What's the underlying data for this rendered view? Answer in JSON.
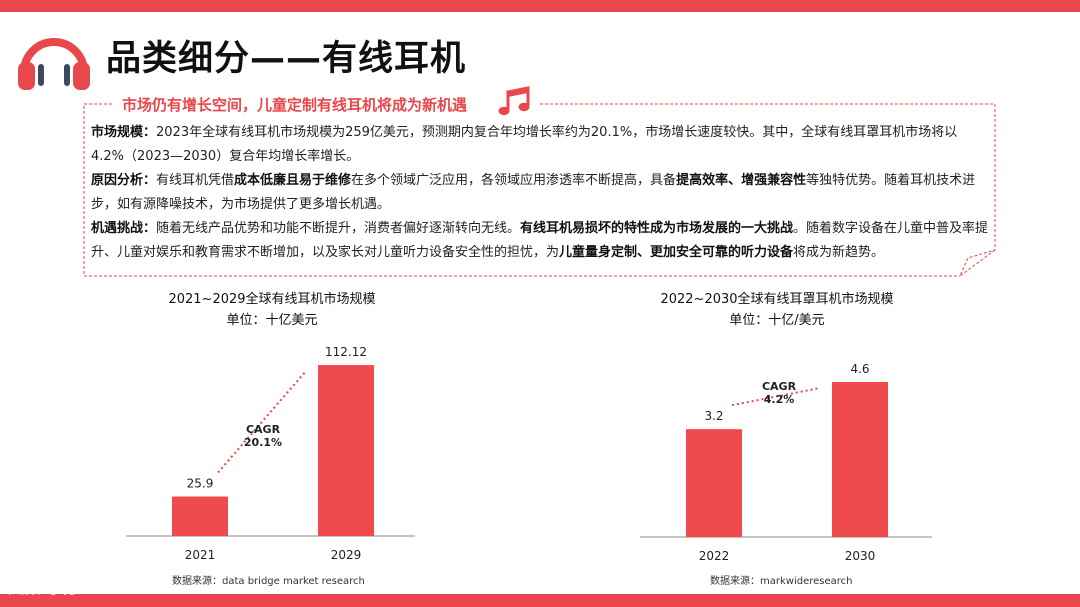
{
  "page": {
    "title": "品类细分——有线耳机",
    "banner": "市场仍有增长空间，儿童定制有线耳机将成为新机遇",
    "watermark": "大数跨境",
    "colors": {
      "accent": "#e8474c",
      "logo_dark": "#3b4a5e"
    },
    "icons": {
      "logo": "headphones-icon",
      "note": "music-note-icon"
    }
  },
  "paragraphs": [
    {
      "name": "market-size-paragraph",
      "segments": [
        {
          "text": "市场规模：",
          "bold": true
        },
        {
          "text": "2023年全球有线耳机市场规模为259亿美元，预测期内复合年均增长率约为20.1%，市场增长速度较快。其中，全球有线耳罩耳机市场将以4.2%（2023—2030）复合年均增长率增长。",
          "bold": false
        }
      ]
    },
    {
      "name": "cause-analysis-paragraph",
      "segments": [
        {
          "text": "原因分析：",
          "bold": true
        },
        {
          "text": "有线耳机凭借",
          "bold": false
        },
        {
          "text": "成本低廉且易于维修",
          "bold": true
        },
        {
          "text": "在多个领域广泛应用，各领域应用渗透率不断提高，具备",
          "bold": false
        },
        {
          "text": "提高效率、增强兼容性",
          "bold": true
        },
        {
          "text": "等独特优势。随着耳机技术进步，如有源降噪技术，为市场提供了更多增长机遇。",
          "bold": false
        }
      ]
    },
    {
      "name": "opportunity-challenge-paragraph",
      "segments": [
        {
          "text": "机遇挑战：",
          "bold": true
        },
        {
          "text": "随着无线产品优势和功能不断提升，消费者偏好逐渐转向无线。",
          "bold": false
        },
        {
          "text": "有线耳机易损坏的特性成为市场发展的一大挑战",
          "bold": true
        },
        {
          "text": "。随着数字设备在儿童中普及率提升、儿童对娱乐和教育需求不断增加，以及家长对儿童听力设备安全性的担忧，为",
          "bold": false
        },
        {
          "text": "儿童量身定制、更加安全可靠的听力设备",
          "bold": true
        },
        {
          "text": "将成为新趋势。",
          "bold": false
        }
      ]
    }
  ],
  "sources": {
    "left": "数据来源：data bridge market research",
    "right": "数据来源：markwideresearch"
  },
  "chart_data": [
    {
      "type": "bar",
      "title": "2021~2029全球有线耳机市场规模",
      "subtitle": "单位：十亿美元",
      "categories": [
        "2021",
        "2029"
      ],
      "values": [
        25.9,
        112.12
      ],
      "value_labels": [
        "25.9",
        "112.12"
      ],
      "ylim": [
        0,
        122
      ],
      "cagr_label": [
        "CAGR",
        "20.1%"
      ],
      "color": "#ef4b4f"
    },
    {
      "type": "bar",
      "title": "2022~2030全球有线耳罩耳机市场规模",
      "subtitle": "单位：十亿/美元",
      "categories": [
        "2022",
        "2030"
      ],
      "values": [
        3.2,
        4.6
      ],
      "value_labels": [
        "3.2",
        "4.6"
      ],
      "ylim": [
        0,
        5.55
      ],
      "cagr_label": [
        "CAGR",
        "4.2%"
      ],
      "color": "#ef4b4f"
    }
  ]
}
